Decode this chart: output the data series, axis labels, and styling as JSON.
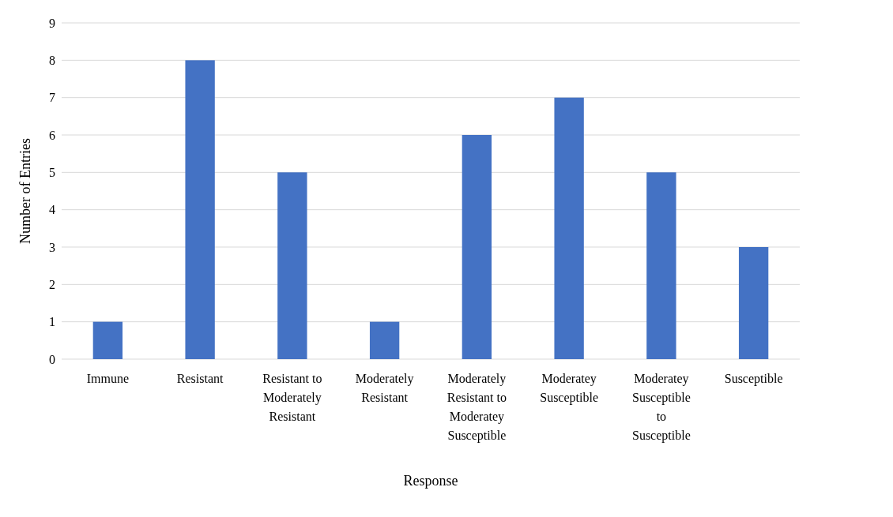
{
  "chart_data": {
    "type": "bar",
    "xlabel": "Response",
    "ylabel": "Number of Entries",
    "categories": [
      "Immune",
      "Resistant",
      "Resistant to Moderately Resistant",
      "Moderately Resistant",
      "Moderately Resistant to Moderatey Susceptible",
      "Moderatey Susceptible",
      "Moderatey Susceptible to Susceptible",
      "Susceptible"
    ],
    "values": [
      1,
      8,
      5,
      1,
      6,
      7,
      5,
      3
    ],
    "color": "#4472c4",
    "ylim": [
      0,
      9
    ],
    "yticks": [
      0,
      1,
      2,
      3,
      4,
      5,
      6,
      7,
      8,
      9
    ],
    "grid": "y"
  }
}
